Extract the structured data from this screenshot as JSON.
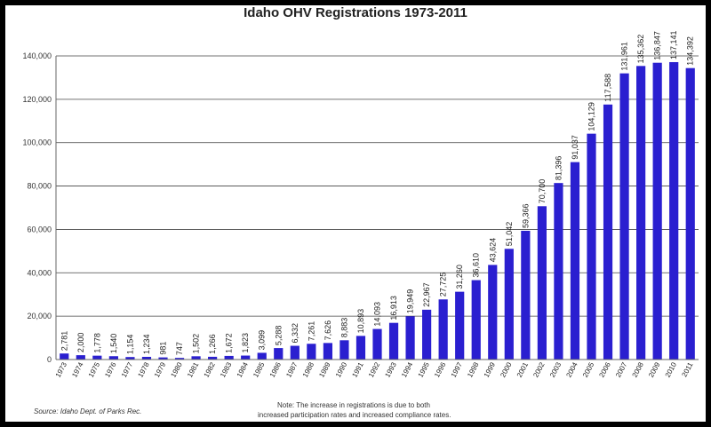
{
  "chart_data": {
    "type": "bar",
    "title": "Idaho OHV Registrations 1973-2011",
    "xlabel": "",
    "ylabel": "",
    "ylim": [
      0,
      140000
    ],
    "yticks": [
      0,
      20000,
      40000,
      60000,
      80000,
      100000,
      120000,
      140000
    ],
    "ytick_labels": [
      "0",
      "20,000",
      "40,000",
      "60,000",
      "80,000",
      "100,000",
      "120,000",
      "140,000"
    ],
    "grid": true,
    "categories": [
      "1973",
      "1974",
      "1975",
      "1976",
      "1977",
      "1978",
      "1979",
      "1980",
      "1981",
      "1982",
      "1983",
      "1984",
      "1985",
      "1986",
      "1987",
      "1988",
      "1989",
      "1990",
      "1991",
      "1992",
      "1993",
      "1994",
      "1995",
      "1996",
      "1997",
      "1998",
      "1999",
      "2000",
      "2001",
      "2002",
      "2003",
      "2004",
      "2005",
      "2006",
      "2007",
      "2008",
      "2009",
      "2010",
      "2011"
    ],
    "values": [
      2781,
      2000,
      1778,
      1540,
      1154,
      1234,
      981,
      747,
      1502,
      1266,
      1672,
      1823,
      3099,
      5288,
      6332,
      7261,
      7626,
      8883,
      10893,
      14093,
      16913,
      19949,
      22967,
      27725,
      31260,
      36610,
      43624,
      51042,
      59366,
      70700,
      81396,
      91037,
      104129,
      117588,
      131961,
      135362,
      136847,
      137141,
      134392
    ],
    "data_labels": [
      "2,781",
      "2,000",
      "1,778",
      "1,540",
      "1,154",
      "1,234",
      "981",
      "747",
      "1,502",
      "1,266",
      "1,672",
      "1,823",
      "3,099",
      "5,288",
      "6,332",
      "7,261",
      "7,626",
      "8,883",
      "10,893",
      "14,093",
      "16,913",
      "19,949",
      "22,967",
      "27,725",
      "31,260",
      "36,610",
      "43,624",
      "51,042",
      "59,366",
      "70,700",
      "81,396",
      "91,037",
      "104,129",
      "117,588",
      "131,961",
      "135,362",
      "136,847",
      "137,141",
      "134,392"
    ],
    "colors": {
      "bar": "#2a1fd0",
      "background": "#ffffff",
      "grid": "#444444",
      "frame": "#000000"
    }
  },
  "source": "Source: Idaho Dept. of Parks Rec.",
  "note_line1": "Note: The increase in registrations is due to both",
  "note_line2": "increased participation rates and increased compliance rates."
}
